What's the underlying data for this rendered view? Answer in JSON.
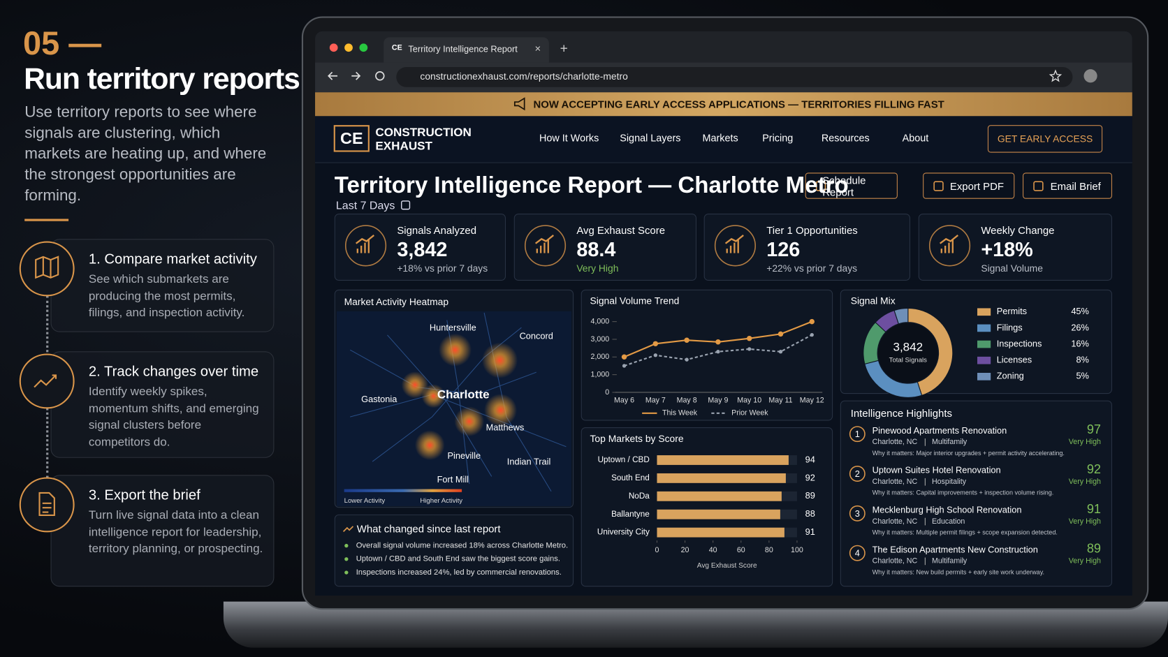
{
  "left": {
    "step": "05 —",
    "title": "Run territory reports",
    "desc": "Use territory reports to see where signals are clustering, which markets are heating up, and where the strongest opportunities are forming.",
    "steps": [
      {
        "title": "1. Compare market activity",
        "text": "See which submarkets are producing the most permits, filings, and inspection activity."
      },
      {
        "title": "2. Track changes over time",
        "text": "Identify weekly spikes, momentum shifts, and emerging signal clusters before competitors do."
      },
      {
        "title": "3. Export the brief",
        "text": "Turn live signal data into a clean intelligence report for leadership, territory planning, or prospecting."
      }
    ]
  },
  "browser": {
    "tab_icon": "CE",
    "tab": "Territory Intelligence Report",
    "url": "constructionexhaust.com/reports/charlotte-metro"
  },
  "banner": "NOW ACCEPTING EARLY ACCESS APPLICATIONS — TERRITORIES FILLING FAST",
  "nav": {
    "logo_mark": "CE",
    "logo": [
      "CONSTRUCTION",
      "EXHAUST"
    ],
    "links": [
      "How It Works",
      "Signal Layers",
      "Markets",
      "Pricing",
      "Resources",
      "About"
    ],
    "cta": "GET EARLY ACCESS"
  },
  "report": {
    "title": "Territory Intelligence Report — Charlotte Metro",
    "period": "Last 7 Days",
    "actions": [
      "Schedule Report",
      "Export PDF",
      "Email Brief"
    ]
  },
  "kpis": [
    {
      "label": "Signals Analyzed",
      "value": "3,842",
      "note": "+18% vs prior 7 days"
    },
    {
      "label": "Avg Exhaust Score",
      "value": "88.4",
      "note": "Very High"
    },
    {
      "label": "Tier 1 Opportunities",
      "value": "126",
      "note": "+22% vs prior 7 days"
    },
    {
      "label": "Weekly Change",
      "value": "+18%",
      "note": "Signal Volume"
    }
  ],
  "heatmap": {
    "title": "Market Activity Heatmap",
    "cities": [
      "Huntersville",
      "Concord",
      "Charlotte",
      "Gastonia",
      "Matthews",
      "Pineville",
      "Indian Trail",
      "Fort Mill"
    ],
    "legend": [
      "Lower Activity",
      "Higher Activity"
    ]
  },
  "trend": {
    "type": "line",
    "title": "Signal Volume Trend",
    "categories": [
      "May 6",
      "May 7",
      "May 8",
      "May 9",
      "May 10",
      "May 11",
      "May 12"
    ],
    "series": [
      {
        "name": "This Week",
        "color": "#e39a45",
        "values": [
          2000,
          2750,
          2950,
          2850,
          3050,
          3300,
          4000
        ]
      },
      {
        "name": "Prior Week",
        "color": "#9aa3b0",
        "values": [
          1500,
          2100,
          1850,
          2300,
          2450,
          2300,
          3250
        ]
      }
    ],
    "ylim": [
      0,
      4000
    ],
    "yticks": [
      0,
      {
        "value": 1000,
        "label": "1,000"
      },
      {
        "value": 2000,
        "label": "2,000"
      },
      {
        "value": 3000,
        "label": "3,000"
      },
      {
        "value": 4000,
        "label": "4,000"
      }
    ]
  },
  "markets": {
    "type": "bar",
    "title": "Top Markets by Score",
    "categories": [
      "Uptown / CBD",
      "South End",
      "NoDa",
      "Ballantyne",
      "University City"
    ],
    "values": [
      94,
      92,
      89,
      88,
      91
    ],
    "color": "#d9a35e",
    "xlim": [
      0,
      100
    ],
    "xticks": [
      0,
      20,
      40,
      60,
      80,
      100
    ],
    "x_label": "Avg Exhaust Score"
  },
  "mix": {
    "type": "pie",
    "title": "Signal Mix",
    "center_value": "3,842",
    "center_label": "Total Signals",
    "categories": [
      "Permits",
      "Filings",
      "Inspections",
      "Licenses",
      "Zoning"
    ],
    "values": [
      45,
      26,
      16,
      8,
      5
    ],
    "value_labels": [
      "45%",
      "26%",
      "16%",
      "8%",
      "5%"
    ],
    "colors": [
      "#d9a35e",
      "#5b8fc0",
      "#4f9a6c",
      "#6d4fa0",
      "#6f8fb8"
    ]
  },
  "changes": {
    "title": "What changed since last report",
    "items": [
      "Overall signal volume increased 18% across Charlotte Metro.",
      "Uptown / CBD and South End saw the biggest score gains.",
      "Inspections increased 24%, led by commercial renovations."
    ]
  },
  "highlights": {
    "title": "Intelligence Highlights",
    "items": [
      {
        "num": "1",
        "name": "Pinewood Apartments Renovation",
        "city": "Charlotte, NC",
        "kind": "Multifamily",
        "why": "Why it matters: Major interior upgrades + permit activity accelerating.",
        "score": "97",
        "rating": "Very High"
      },
      {
        "num": "2",
        "name": "Uptown Suites Hotel Renovation",
        "city": "Charlotte, NC",
        "kind": "Hospitality",
        "why": "Why it matters: Capital improvements + inspection volume rising.",
        "score": "92",
        "rating": "Very High"
      },
      {
        "num": "3",
        "name": "Mecklenburg High School Renovation",
        "city": "Charlotte, NC",
        "kind": "Education",
        "why": "Why it matters: Multiple permit filings + scope expansion detected.",
        "score": "91",
        "rating": "Very High"
      },
      {
        "num": "4",
        "name": "The Edison Apartments New Construction",
        "city": "Charlotte, NC",
        "kind": "Multifamily",
        "why": "Why it matters: New build permits + early site work underway.",
        "score": "89",
        "rating": "Very High"
      }
    ]
  }
}
